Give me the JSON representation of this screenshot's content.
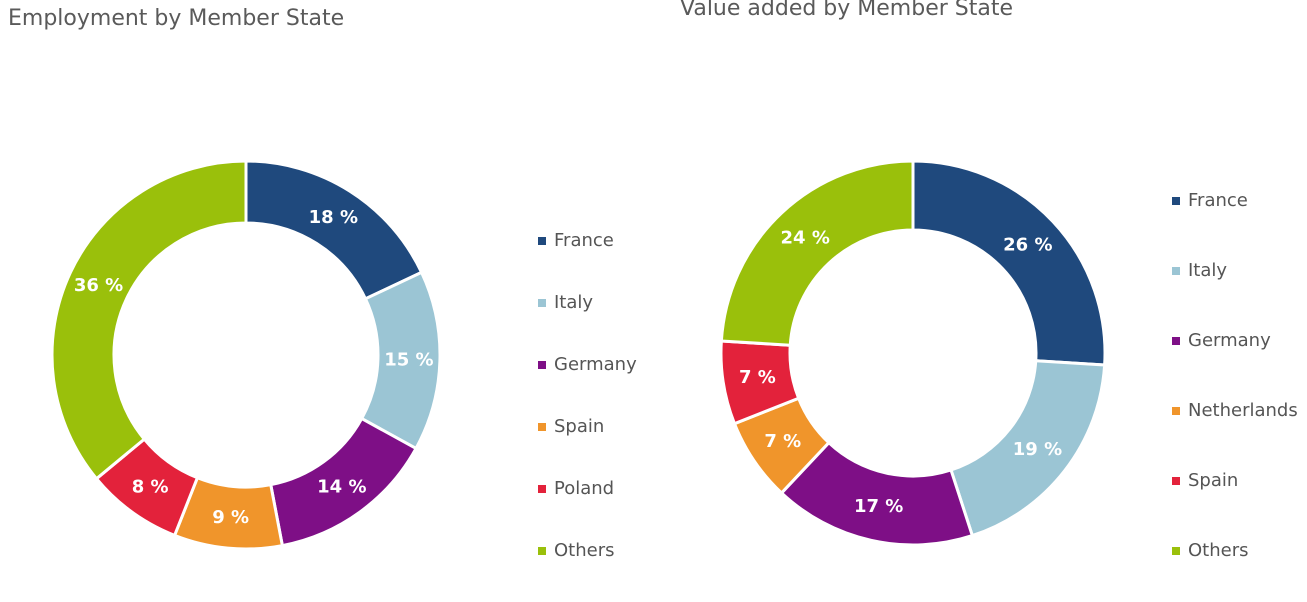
{
  "chart_data": [
    {
      "type": "pie",
      "title": "Employment by Member State",
      "donut": true,
      "legend_position": "right",
      "slices": [
        {
          "name": "France",
          "value": 18,
          "label": "18 %",
          "color": "#1f497d"
        },
        {
          "name": "Italy",
          "value": 15,
          "label": "15 %",
          "color": "#9bc5d4"
        },
        {
          "name": "Germany",
          "value": 14,
          "label": "14 %",
          "color": "#7e0f86"
        },
        {
          "name": "Spain",
          "value": 9,
          "label": "9 %",
          "color": "#f0952b"
        },
        {
          "name": "Poland",
          "value": 8,
          "label": "8 %",
          "color": "#e3223b"
        },
        {
          "name": "Others",
          "value": 36,
          "label": "36 %",
          "color": "#9ac00b"
        }
      ]
    },
    {
      "type": "pie",
      "title": "Value added by Member State",
      "donut": true,
      "legend_position": "right",
      "slices": [
        {
          "name": "France",
          "value": 26,
          "label": "26 %",
          "color": "#1f497d"
        },
        {
          "name": "Italy",
          "value": 19,
          "label": "19 %",
          "color": "#9bc5d4"
        },
        {
          "name": "Germany",
          "value": 17,
          "label": "17 %",
          "color": "#7e0f86"
        },
        {
          "name": "Netherlands",
          "value": 7,
          "label": "7 %",
          "color": "#f0952b"
        },
        {
          "name": "Spain",
          "value": 7,
          "label": "7 %",
          "color": "#e3223b"
        },
        {
          "name": "Others",
          "value": 24,
          "label": "24 %",
          "color": "#9ac00b"
        }
      ]
    }
  ]
}
